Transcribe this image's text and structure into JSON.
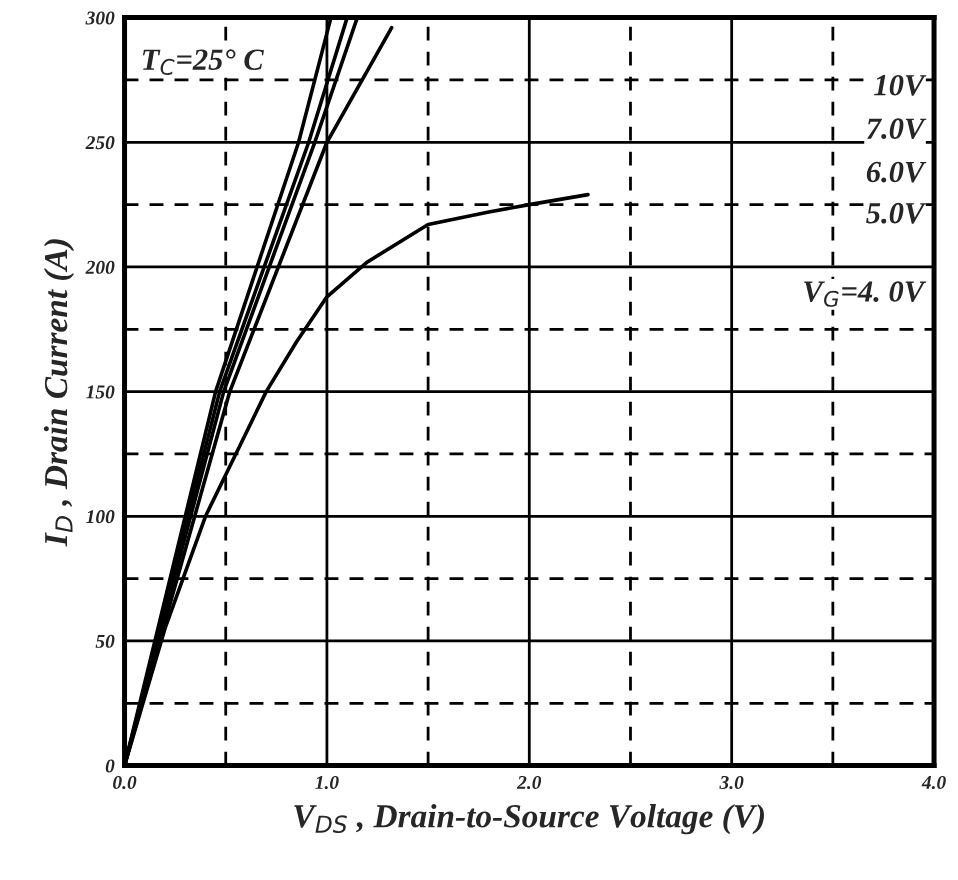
{
  "chart_data": {
    "type": "line",
    "xlabel": "V$_{DS}$ , Drain-to-Source Voltage (V)",
    "ylabel": "I$_{D}$ , Drain Current (A)",
    "annotations": [
      "T$_{C}$=25° C"
    ],
    "series": [
      {
        "name": "10V",
        "color": "#000000",
        "x": [
          0,
          0.45,
          0.86,
          1.02
        ],
        "values": [
          0,
          150,
          250,
          300
        ]
      },
      {
        "name": "7.0V",
        "color": "#000000",
        "x": [
          0,
          0.47,
          0.91,
          1.1
        ],
        "values": [
          0,
          150,
          250,
          300
        ]
      },
      {
        "name": "6.0V",
        "color": "#000000",
        "x": [
          0,
          0.49,
          0.94,
          1.15
        ],
        "values": [
          0,
          150,
          250,
          300
        ]
      },
      {
        "name": "5.0V",
        "color": "#000000",
        "x": [
          0,
          0.52,
          1.0,
          1.32
        ],
        "values": [
          0,
          150,
          250,
          296
        ]
      },
      {
        "name": "V$_{G}$=4. 0V",
        "color": "#000000",
        "x": [
          0,
          0.2,
          0.4,
          0.55,
          0.7,
          0.85,
          1.0,
          1.2,
          1.5,
          1.8,
          2.0,
          2.29
        ],
        "values": [
          0,
          55,
          100,
          125,
          150,
          170,
          188,
          202,
          217,
          222,
          225,
          229
        ]
      }
    ],
    "xlim": [
      0,
      4
    ],
    "ylim": [
      0,
      300
    ],
    "xticks": [
      {
        "value": 0,
        "label": "0.0"
      },
      {
        "value": 1,
        "label": "1.0"
      },
      {
        "value": 2,
        "label": "2.0"
      },
      {
        "value": 3,
        "label": "3.0"
      },
      {
        "value": 4,
        "label": "4.0"
      }
    ],
    "yticks": [
      0,
      50,
      100,
      150,
      200,
      250,
      300
    ],
    "grid": true,
    "marker": "none",
    "line_style": "solid"
  }
}
